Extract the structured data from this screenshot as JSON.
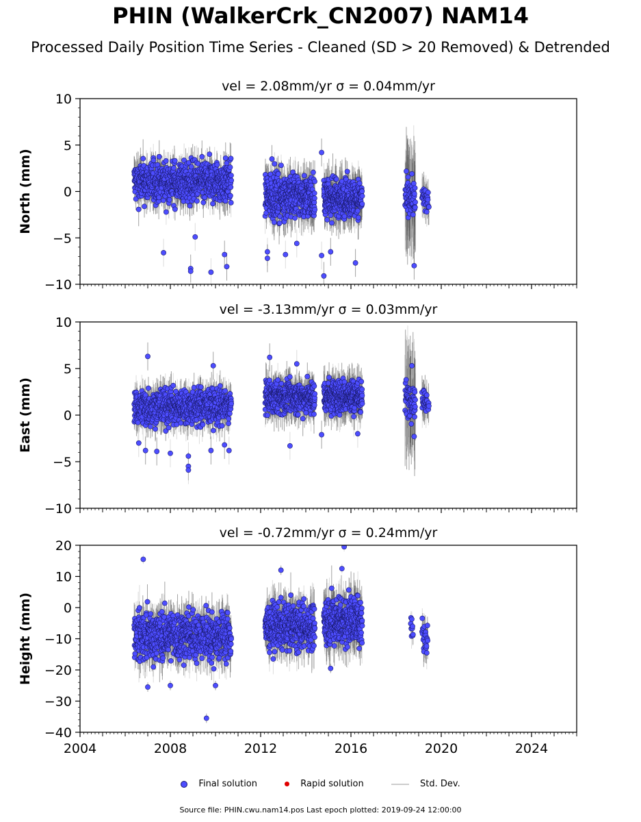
{
  "title": "PHIN (WalkerCrk_CN2007) NAM14",
  "subtitle": "Processed Daily Position Time Series - Cleaned (SD > 20 Removed) & Detrended",
  "legend": {
    "final": "Final solution",
    "rapid": "Rapid solution",
    "sd": "Std. Dev."
  },
  "footer": "Source file: PHIN.cwu.nam14.pos  Last epoch plotted: 2019-09-24 12:00:00",
  "colors": {
    "final_fill": "#4d4dff",
    "final_edge": "#1a1a6e",
    "rapid": "#e00000",
    "stddev": "#bfbfbf",
    "stddev_dense": "#555555"
  },
  "chart_data": [
    {
      "type": "scatter",
      "title": "vel = 2.08mm/yr   σ = 0.04mm/yr",
      "ylabel": "North (mm)",
      "xlim": [
        2004,
        2026
      ],
      "ylim": [
        -10,
        10
      ],
      "yticks": [
        -10,
        -5,
        0,
        5,
        10
      ],
      "xticks": [
        2004,
        2008,
        2012,
        2016,
        2020,
        2024
      ],
      "grid": false,
      "segments": [
        {
          "start": 2006.4,
          "end": 2010.7,
          "mean": 1.0,
          "spread": 1.6,
          "sd": 1.4,
          "n": 700
        },
        {
          "start": 2012.2,
          "end": 2014.4,
          "mean": -0.5,
          "spread": 1.7,
          "sd": 1.6,
          "n": 420
        },
        {
          "start": 2014.8,
          "end": 2016.5,
          "mean": -0.7,
          "spread": 1.4,
          "sd": 1.7,
          "n": 360
        },
        {
          "start": 2018.4,
          "end": 2018.85,
          "mean": -1.0,
          "spread": 1.5,
          "sd": 4.5,
          "n": 60
        },
        {
          "start": 2019.15,
          "end": 2019.45,
          "mean": -0.8,
          "spread": 0.8,
          "sd": 1.5,
          "n": 30
        }
      ],
      "outliers": [
        {
          "x": 2007.7,
          "y": -6.6
        },
        {
          "x": 2008.9,
          "y": -8.3
        },
        {
          "x": 2008.9,
          "y": -8.6
        },
        {
          "x": 2009.1,
          "y": -4.9
        },
        {
          "x": 2009.8,
          "y": -8.7
        },
        {
          "x": 2010.4,
          "y": -6.8
        },
        {
          "x": 2010.5,
          "y": -8.1
        },
        {
          "x": 2012.3,
          "y": -6.5
        },
        {
          "x": 2012.3,
          "y": -7.2
        },
        {
          "x": 2013.1,
          "y": -6.8
        },
        {
          "x": 2013.6,
          "y": -5.6
        },
        {
          "x": 2014.8,
          "y": -9.1
        },
        {
          "x": 2014.7,
          "y": -6.9
        },
        {
          "x": 2015.1,
          "y": -6.5
        },
        {
          "x": 2016.2,
          "y": -7.7
        },
        {
          "x": 2018.8,
          "y": -8.0
        },
        {
          "x": 2014.7,
          "y": 4.2
        },
        {
          "x": 2012.5,
          "y": 3.5
        },
        {
          "x": 2018.7,
          "y": 1.9
        }
      ]
    },
    {
      "type": "scatter",
      "title": "vel = -3.13mm/yr   σ = 0.03mm/yr",
      "ylabel": "East (mm)",
      "xlim": [
        2004,
        2026
      ],
      "ylim": [
        -10,
        10
      ],
      "yticks": [
        -10,
        -5,
        0,
        5,
        10
      ],
      "xticks": [
        2004,
        2008,
        2012,
        2016,
        2020,
        2024
      ],
      "grid": false,
      "segments": [
        {
          "start": 2006.4,
          "end": 2010.7,
          "mean": 0.9,
          "spread": 1.4,
          "sd": 1.3,
          "n": 700
        },
        {
          "start": 2012.2,
          "end": 2014.4,
          "mean": 1.9,
          "spread": 1.2,
          "sd": 1.4,
          "n": 420
        },
        {
          "start": 2014.8,
          "end": 2016.5,
          "mean": 2.0,
          "spread": 1.3,
          "sd": 1.5,
          "n": 360
        },
        {
          "start": 2018.4,
          "end": 2018.85,
          "mean": 1.8,
          "spread": 1.3,
          "sd": 4.5,
          "n": 60
        },
        {
          "start": 2019.15,
          "end": 2019.45,
          "mean": 1.5,
          "spread": 0.8,
          "sd": 1.5,
          "n": 30
        }
      ],
      "outliers": [
        {
          "x": 2006.6,
          "y": -3.0
        },
        {
          "x": 2006.9,
          "y": -3.8
        },
        {
          "x": 2007.4,
          "y": -3.9
        },
        {
          "x": 2008.0,
          "y": -4.1
        },
        {
          "x": 2008.8,
          "y": -4.4
        },
        {
          "x": 2008.8,
          "y": -5.5
        },
        {
          "x": 2008.8,
          "y": -5.9
        },
        {
          "x": 2009.8,
          "y": -3.8
        },
        {
          "x": 2010.6,
          "y": -3.8
        },
        {
          "x": 2010.4,
          "y": -3.2
        },
        {
          "x": 2012.4,
          "y": 6.2
        },
        {
          "x": 2013.6,
          "y": 5.5
        },
        {
          "x": 2007.0,
          "y": 6.3
        },
        {
          "x": 2009.9,
          "y": 5.3
        },
        {
          "x": 2013.3,
          "y": -3.3
        },
        {
          "x": 2014.7,
          "y": -2.1
        },
        {
          "x": 2016.3,
          "y": -2.0
        },
        {
          "x": 2018.8,
          "y": -2.3
        },
        {
          "x": 2018.7,
          "y": 5.3
        }
      ]
    },
    {
      "type": "scatter",
      "title": "vel = -0.72mm/yr   σ = 0.24mm/yr",
      "ylabel": "Height (mm)",
      "xlabel": "",
      "xlim": [
        2004,
        2026
      ],
      "ylim": [
        -40,
        20
      ],
      "yticks": [
        -40,
        -30,
        -20,
        -10,
        0,
        10,
        20
      ],
      "xticks": [
        2004,
        2008,
        2012,
        2016,
        2020,
        2024
      ],
      "grid": false,
      "segments": [
        {
          "start": 2006.4,
          "end": 2010.7,
          "mean": -9.0,
          "spread": 5.5,
          "sd": 5.0,
          "n": 700
        },
        {
          "start": 2012.2,
          "end": 2014.4,
          "mean": -6.0,
          "spread": 5.0,
          "sd": 5.0,
          "n": 420
        },
        {
          "start": 2014.8,
          "end": 2016.5,
          "mean": -4.0,
          "spread": 5.5,
          "sd": 5.5,
          "n": 360
        },
        {
          "start": 2018.65,
          "end": 2018.75,
          "mean": -6.0,
          "spread": 3.5,
          "sd": 3.0,
          "n": 10
        },
        {
          "start": 2019.15,
          "end": 2019.4,
          "mean": -9.0,
          "spread": 4.5,
          "sd": 4.0,
          "n": 25
        }
      ],
      "outliers": [
        {
          "x": 2006.8,
          "y": 15.5
        },
        {
          "x": 2009.6,
          "y": -35.5
        },
        {
          "x": 2015.7,
          "y": 19.5
        },
        {
          "x": 2007.0,
          "y": -25.5
        },
        {
          "x": 2008.0,
          "y": -25.0
        },
        {
          "x": 2010.0,
          "y": -25.0
        },
        {
          "x": 2015.1,
          "y": -19.5
        },
        {
          "x": 2012.9,
          "y": 12.0
        },
        {
          "x": 2015.6,
          "y": 12.5
        }
      ]
    }
  ]
}
